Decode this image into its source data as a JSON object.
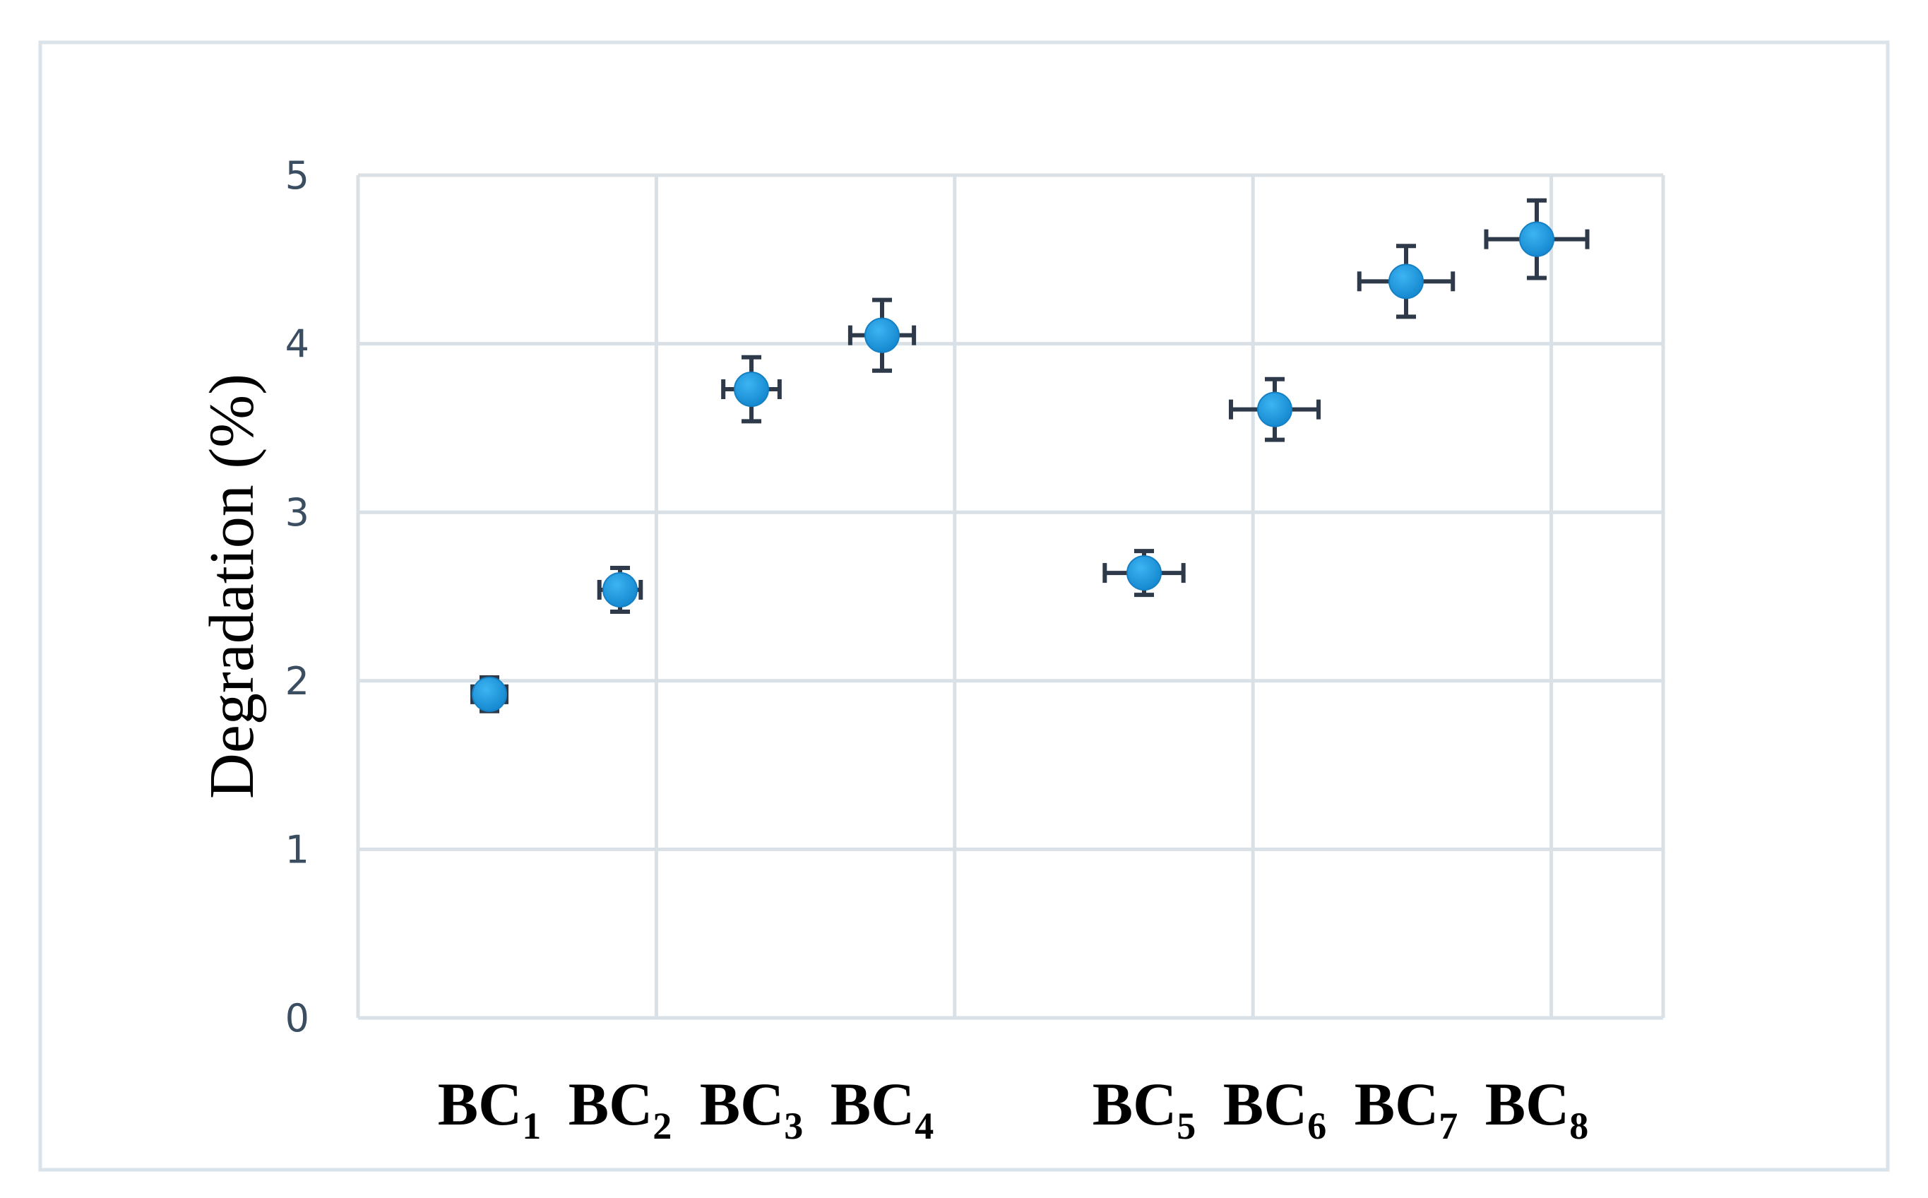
{
  "chart_data": {
    "type": "scatter",
    "title": "",
    "xlabel": "",
    "ylabel": "Degradation (%)",
    "ylim": [
      0,
      5
    ],
    "yticks": [
      "0",
      "1",
      "2",
      "3",
      "4",
      "5"
    ],
    "grid": true,
    "legend": "none",
    "colors": {
      "marker": "#1e9be0",
      "error_bar": "#2e3a4a",
      "grid": "#d9e0e6"
    },
    "points": [
      {
        "label": "BC",
        "sub": "1",
        "x": 1.0,
        "y": 1.92,
        "yerr": 0.1,
        "xerr": 0.0
      },
      {
        "label": "BC",
        "sub": "2",
        "x": 2.0,
        "y": 2.54,
        "yerr": 0.13,
        "xerr": 0.05
      },
      {
        "label": "BC",
        "sub": "3",
        "x": 3.0,
        "y": 3.73,
        "yerr": 0.19,
        "xerr": 0.15
      },
      {
        "label": "BC",
        "sub": "4",
        "x": 4.0,
        "y": 4.05,
        "yerr": 0.21,
        "xerr": 0.2
      },
      {
        "label": "BC",
        "sub": "5",
        "x": 5.0,
        "y": 2.64,
        "yerr": 0.13,
        "xerr": 0.3
      },
      {
        "label": "BC",
        "sub": "6",
        "x": 6.0,
        "y": 3.61,
        "yerr": 0.18,
        "xerr": 0.36
      },
      {
        "label": "BC",
        "sub": "7",
        "x": 7.0,
        "y": 4.37,
        "yerr": 0.21,
        "xerr": 0.4
      },
      {
        "label": "BC",
        "sub": "8",
        "x": 8.0,
        "y": 4.62,
        "yerr": 0.23,
        "xerr": 0.45
      }
    ]
  }
}
